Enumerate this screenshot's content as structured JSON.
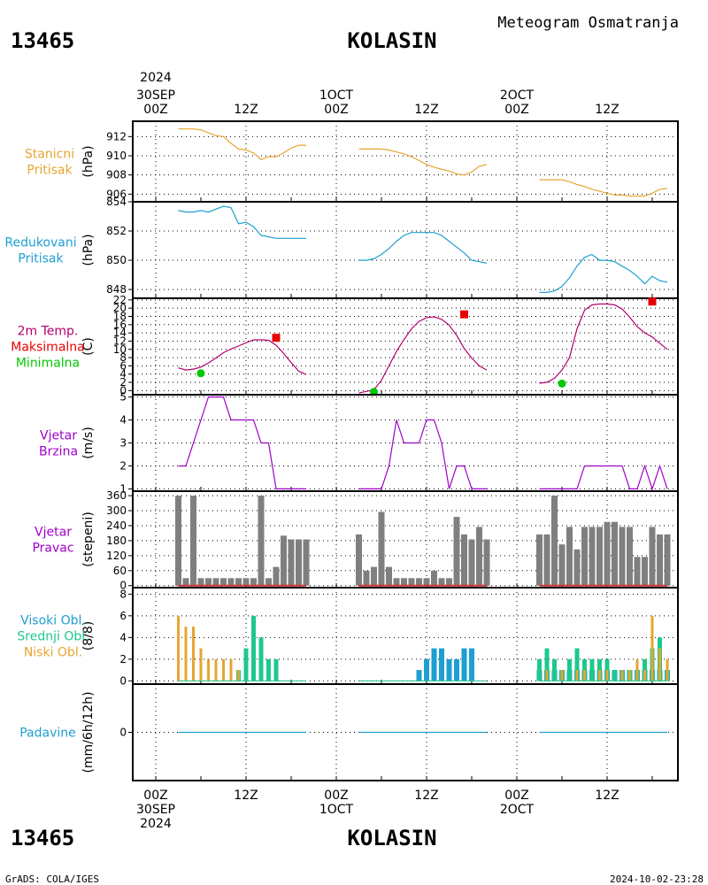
{
  "header": {
    "station_id": "13465",
    "station_name": "KOLASIN",
    "subtitle": "Meteogram Osmatranja"
  },
  "time_axis": {
    "top_year": "2024",
    "labels_top": [
      "30SEP\n00Z",
      "12Z",
      "1OCT\n00Z",
      "12Z",
      "2OCT\n00Z",
      "12Z"
    ],
    "labels_bottom": [
      "00Z\n30SEP\n2024",
      "12Z",
      "00Z\n1OCT",
      "12Z",
      "00Z\n2OCT",
      "12Z"
    ]
  },
  "footer": {
    "left": "GrADS: COLA/IGES",
    "right": "2024-10-02-23:28"
  },
  "colors": {
    "stanicni": "#e6a532",
    "redukovani": "#1e9fd2",
    "temp_line": "#b4006e",
    "maks": "#e60000",
    "min": "#00c800",
    "vjetar": "#a000c8",
    "pravac_bar": "#7f7f7f",
    "pravac_line": "#c83232",
    "visoki": "#1e9fd2",
    "srednji": "#1ec88c",
    "niski": "#e6a532",
    "padavine": "#1e9fd2"
  },
  "chart_data": [
    {
      "type": "line",
      "id": "stanicni",
      "label_lines": [
        "Stanicni",
        "Pritisak"
      ],
      "ylabel": "(hPa)",
      "yticks": [
        906,
        908,
        910,
        912
      ],
      "ylim": [
        905.2,
        913.6
      ],
      "series": [
        {
          "x": [
            3,
            4,
            5,
            6,
            7,
            8,
            9,
            10,
            11,
            12,
            13,
            14,
            15,
            16,
            17,
            18,
            19,
            20
          ],
          "values": [
            912.8,
            912.8,
            912.8,
            912.7,
            912.4,
            912.1,
            912.0,
            911.3,
            910.7,
            910.6,
            910.3,
            909.6,
            909.9,
            909.9,
            910.3,
            910.8,
            911.1,
            911.1
          ]
        },
        {
          "x": [
            27,
            28,
            29,
            30,
            31,
            32,
            33,
            34,
            35,
            36,
            37,
            38,
            39,
            40,
            41,
            42,
            43,
            44
          ],
          "values": [
            910.7,
            910.7,
            910.7,
            910.7,
            910.6,
            910.4,
            910.2,
            909.9,
            909.5,
            909.1,
            908.8,
            908.6,
            908.4,
            908.1,
            908.0,
            908.3,
            908.9,
            909.1
          ]
        },
        {
          "x": [
            51,
            52,
            53,
            54,
            55,
            56,
            57,
            58,
            59,
            60,
            61,
            62,
            63,
            64,
            65,
            66,
            67,
            68
          ],
          "values": [
            907.5,
            907.5,
            907.5,
            907.5,
            907.3,
            907.0,
            906.8,
            906.5,
            906.3,
            906.1,
            905.9,
            905.9,
            905.8,
            905.8,
            905.8,
            906.1,
            906.5,
            906.6
          ]
        }
      ]
    },
    {
      "type": "line",
      "id": "redukovani",
      "label_lines": [
        "Redukovani",
        "Pritisak"
      ],
      "ylabel": "(hPa)",
      "yticks": [
        848,
        850,
        852,
        854
      ],
      "ylim": [
        847.4,
        854.0
      ],
      "series": [
        {
          "x": [
            3,
            4,
            5,
            6,
            7,
            8,
            9,
            10,
            11,
            12,
            13,
            14,
            15,
            16,
            17,
            18,
            19,
            20
          ],
          "values": [
            853.4,
            853.3,
            853.3,
            853.4,
            853.3,
            853.5,
            853.7,
            853.6,
            852.5,
            852.6,
            852.3,
            851.7,
            851.6,
            851.5,
            851.5,
            851.5,
            851.5,
            851.5
          ]
        },
        {
          "x": [
            27,
            28,
            29,
            30,
            31,
            32,
            33,
            34,
            35,
            36,
            37,
            38,
            39,
            40,
            41,
            42,
            43,
            44
          ],
          "values": [
            850.0,
            850.0,
            850.1,
            850.4,
            850.8,
            851.3,
            851.7,
            851.9,
            851.9,
            851.9,
            851.9,
            851.7,
            851.3,
            850.9,
            850.5,
            850.0,
            849.9,
            849.8
          ]
        },
        {
          "x": [
            51,
            52,
            53,
            54,
            55,
            56,
            57,
            58,
            59,
            60,
            61,
            62,
            63,
            64,
            65,
            66,
            67,
            68
          ],
          "values": [
            847.8,
            847.8,
            847.9,
            848.2,
            848.8,
            849.6,
            850.2,
            850.4,
            850.0,
            850.0,
            849.9,
            849.6,
            849.3,
            848.9,
            848.4,
            848.9,
            848.6,
            848.5
          ]
        }
      ]
    },
    {
      "type": "line",
      "id": "temperatura",
      "label_lines": [
        "2m Temp.",
        "Maksimalna",
        "Minimalna"
      ],
      "ylabel": "(C)",
      "yticks": [
        0,
        2,
        4,
        6,
        8,
        10,
        12,
        14,
        16,
        18,
        20,
        22
      ],
      "ylim": [
        -1.0,
        22.4
      ],
      "series": [
        {
          "name": "2m Temp.",
          "x": [
            3,
            4,
            5,
            6,
            7,
            8,
            9,
            10,
            11,
            12,
            13,
            14,
            15,
            16,
            17,
            18,
            19,
            20
          ],
          "values": [
            5.5,
            5.0,
            5.2,
            5.7,
            6.7,
            7.9,
            9.2,
            10.1,
            10.8,
            11.6,
            12.3,
            12.3,
            12.2,
            11.0,
            9.0,
            6.8,
            4.7,
            3.9
          ]
        },
        {
          "name": "2m Temp.",
          "x": [
            27,
            28,
            29,
            30,
            31,
            32,
            33,
            34,
            35,
            36,
            37,
            38,
            39,
            40,
            41,
            42,
            43,
            44
          ],
          "values": [
            -0.6,
            -0.2,
            0.2,
            2.5,
            6.0,
            9.5,
            12.4,
            15.0,
            16.8,
            17.7,
            17.9,
            17.3,
            15.9,
            13.4,
            10.2,
            7.9,
            6.0,
            5.0
          ]
        },
        {
          "name": "2m Temp.",
          "x": [
            51,
            52,
            53,
            54,
            55,
            56,
            57,
            58,
            59,
            60,
            61,
            62,
            63,
            64,
            65,
            66,
            67,
            68
          ],
          "values": [
            1.8,
            2.0,
            3.0,
            5.0,
            8.0,
            15.0,
            19.5,
            20.8,
            21.0,
            21.0,
            20.8,
            19.8,
            17.8,
            15.5,
            14.0,
            13.0,
            11.5,
            10.0
          ]
        }
      ],
      "maks": [
        {
          "x": 16,
          "value": 12.8
        },
        {
          "x": 41,
          "value": 18.5
        },
        {
          "x": 66,
          "value": 21.6
        }
      ],
      "min": [
        {
          "x": 6,
          "value": 4.2
        },
        {
          "x": 29,
          "value": -0.3
        },
        {
          "x": 54,
          "value": 1.7
        }
      ]
    },
    {
      "type": "line",
      "id": "vjetar_brzina",
      "label_lines": [
        "Vjetar",
        "Brzina"
      ],
      "ylabel": "(m/s)",
      "yticks": [
        1,
        2,
        3,
        4,
        5
      ],
      "ylim": [
        0.9,
        5.1
      ],
      "series": [
        {
          "x": [
            3,
            4,
            5,
            6,
            7,
            8,
            9,
            10,
            11,
            12,
            13,
            14,
            15,
            16,
            17,
            18,
            19,
            20
          ],
          "values": [
            2,
            2,
            3,
            4,
            5,
            5,
            5,
            4,
            4,
            4,
            4,
            3,
            3,
            1,
            1,
            1,
            1,
            1
          ]
        },
        {
          "x": [
            27,
            28,
            29,
            30,
            31,
            32,
            33,
            34,
            35,
            36,
            37,
            38,
            39,
            40,
            41,
            42,
            43,
            44
          ],
          "values": [
            1,
            1,
            1,
            1,
            2,
            4,
            3,
            3,
            3,
            4,
            4,
            3,
            1,
            2,
            2,
            1,
            1,
            1
          ]
        },
        {
          "x": [
            51,
            52,
            53,
            54,
            55,
            56,
            57,
            58,
            59,
            60,
            61,
            62,
            63,
            64,
            65,
            66,
            67,
            68
          ],
          "values": [
            1,
            1,
            1,
            1,
            1,
            1,
            2,
            2,
            2,
            2,
            2,
            2,
            1,
            1,
            2,
            1,
            2,
            1
          ]
        }
      ]
    },
    {
      "type": "bar",
      "id": "vjetar_pravac",
      "label_lines": [
        "Vjetar",
        "Pravac"
      ],
      "ylabel": "(stepeni)",
      "yticks": [
        0,
        60,
        120,
        180,
        240,
        300,
        360
      ],
      "ylim": [
        -8,
        378
      ],
      "series": [
        {
          "x": [
            3,
            4,
            5,
            6,
            7,
            8,
            9,
            10,
            11,
            12,
            13,
            14,
            15,
            16,
            17,
            18,
            19,
            20
          ],
          "values": [
            360,
            30,
            360,
            30,
            30,
            30,
            30,
            30,
            30,
            30,
            30,
            360,
            30,
            75,
            200,
            185,
            185,
            185
          ]
        },
        {
          "x": [
            27,
            28,
            29,
            30,
            31,
            32,
            33,
            34,
            35,
            36,
            37,
            38,
            39,
            40,
            41,
            42,
            43,
            44
          ],
          "values": [
            205,
            60,
            75,
            295,
            75,
            30,
            30,
            30,
            30,
            30,
            60,
            30,
            30,
            275,
            205,
            185,
            235,
            185
          ]
        },
        {
          "x": [
            51,
            52,
            53,
            54,
            55,
            56,
            57,
            58,
            59,
            60,
            61,
            62,
            63,
            64,
            65,
            66,
            67,
            68
          ],
          "values": [
            205,
            205,
            360,
            165,
            235,
            145,
            235,
            235,
            235,
            255,
            255,
            235,
            235,
            115,
            115,
            235,
            205,
            205
          ]
        }
      ]
    },
    {
      "type": "bar",
      "id": "oblacnost",
      "label_lines": [
        "Visoki Obl.",
        "Srednji Obl.",
        "Niski Obl."
      ],
      "ylabel": "(8/8)",
      "yticks": [
        0,
        2,
        4,
        6,
        8
      ],
      "ylim": [
        -0.3,
        8.6
      ],
      "series": [
        {
          "name": "Visoki Obl.",
          "x": [
            3,
            4,
            5,
            6,
            7,
            8,
            9,
            10,
            11,
            12,
            13,
            14,
            15,
            16,
            17,
            18,
            19,
            20,
            27,
            28,
            29,
            30,
            31,
            32,
            33,
            34,
            35,
            36,
            37,
            38,
            39,
            40,
            41,
            42,
            43,
            44,
            51,
            52,
            53,
            54,
            55,
            56,
            57,
            58,
            59,
            60,
            61,
            62,
            63,
            64,
            65,
            66,
            67,
            68
          ],
          "values": [
            0,
            0,
            0,
            0,
            0,
            0,
            0,
            0,
            0,
            0,
            0,
            0,
            0,
            0,
            0,
            0,
            0,
            0,
            0,
            0,
            0,
            0,
            0,
            0,
            0,
            0,
            1,
            2,
            3,
            3,
            2,
            2,
            3,
            3,
            0,
            0,
            1,
            1,
            1,
            1,
            1,
            1,
            1,
            1,
            1,
            1,
            1,
            1,
            1,
            1,
            1,
            1,
            1,
            1
          ]
        },
        {
          "name": "Srednji Obl.",
          "x": [
            3,
            4,
            5,
            6,
            7,
            8,
            9,
            10,
            11,
            12,
            13,
            14,
            15,
            16,
            17,
            18,
            19,
            20,
            27,
            28,
            29,
            30,
            31,
            32,
            33,
            34,
            35,
            36,
            37,
            38,
            39,
            40,
            41,
            42,
            43,
            44,
            51,
            52,
            53,
            54,
            55,
            56,
            57,
            58,
            59,
            60,
            61,
            62,
            63,
            64,
            65,
            66,
            67,
            68
          ],
          "values": [
            0,
            0,
            0,
            0,
            0,
            0,
            0,
            0,
            1,
            3,
            6,
            4,
            2,
            2,
            0,
            0,
            0,
            0,
            0,
            0,
            0,
            0,
            0,
            0,
            0,
            0,
            0,
            0,
            0,
            0,
            0,
            0,
            0,
            0,
            0,
            0,
            2,
            3,
            2,
            1,
            2,
            3,
            2,
            2,
            2,
            2,
            1,
            1,
            1,
            1,
            2,
            3,
            4,
            1
          ]
        },
        {
          "name": "Niski Obl.",
          "x": [
            3,
            4,
            5,
            6,
            7,
            8,
            9,
            10,
            11,
            12,
            13,
            14,
            15,
            16,
            17,
            18,
            19,
            20,
            27,
            28,
            29,
            30,
            31,
            32,
            33,
            34,
            35,
            36,
            37,
            38,
            39,
            40,
            41,
            42,
            43,
            44,
            51,
            52,
            53,
            54,
            55,
            56,
            57,
            58,
            59,
            60,
            61,
            62,
            63,
            64,
            65,
            66,
            67,
            68
          ],
          "values": [
            6,
            5,
            5,
            3,
            2,
            2,
            2,
            2,
            1,
            0,
            0,
            0,
            0,
            0,
            0,
            0,
            0,
            0,
            0,
            0,
            0,
            0,
            0,
            0,
            0,
            0,
            0,
            0,
            0,
            0,
            0,
            0,
            0,
            0,
            0,
            0,
            0,
            1,
            0,
            1,
            0,
            1,
            1,
            0,
            1,
            1,
            0,
            1,
            1,
            2,
            1,
            6,
            3,
            2
          ]
        }
      ]
    },
    {
      "type": "line",
      "id": "padavine",
      "label_lines": [
        "Padavine"
      ],
      "ylabel": "(mm/6h/12h)",
      "yticks": [
        0
      ],
      "ylim": [
        -4,
        4
      ],
      "series": [
        {
          "x": [
            3,
            20
          ],
          "values": [
            0,
            0
          ]
        },
        {
          "x": [
            27,
            44
          ],
          "values": [
            0,
            0
          ]
        },
        {
          "x": [
            51,
            68
          ],
          "values": [
            0,
            0
          ]
        }
      ]
    }
  ]
}
